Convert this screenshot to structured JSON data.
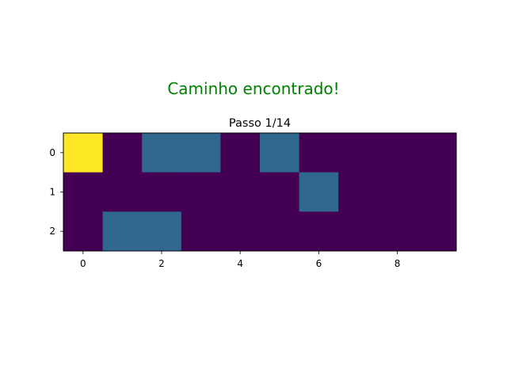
{
  "suptitle": "Caminho encontrado!",
  "colors": {
    "suptitle": "#008000",
    "value_0": "#440154",
    "value_1": "#31688e",
    "value_2": "#fde725"
  },
  "chart_data": {
    "type": "heatmap",
    "title": "Passo 1/14",
    "xlabel": "",
    "ylabel": "",
    "colormap": "viridis",
    "value_range": [
      0,
      2
    ],
    "grid": false,
    "xlim": [
      -0.5,
      9.5
    ],
    "ylim": [
      2.5,
      -0.5
    ],
    "xticks": [
      0,
      2,
      4,
      6,
      8
    ],
    "yticks": [
      0,
      1,
      2
    ],
    "matrix": [
      [
        2,
        0,
        1,
        1,
        0,
        1,
        0,
        0,
        0,
        0
      ],
      [
        0,
        0,
        0,
        0,
        0,
        0,
        1,
        0,
        0,
        0
      ],
      [
        0,
        1,
        1,
        0,
        0,
        0,
        0,
        0,
        0,
        0
      ]
    ]
  }
}
